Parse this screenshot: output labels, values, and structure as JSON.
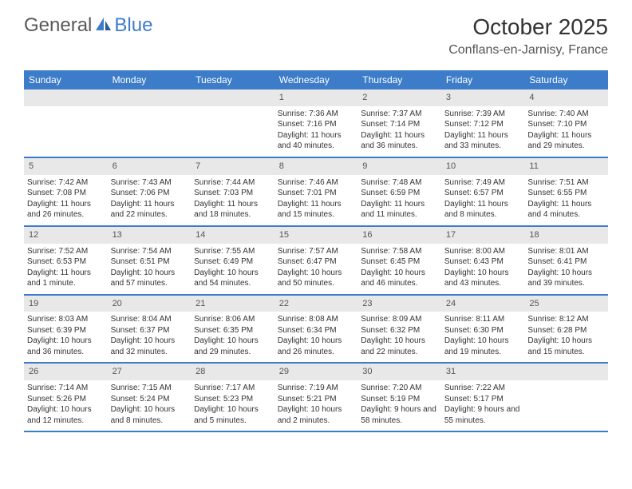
{
  "logo": {
    "part1": "General",
    "part2": "Blue"
  },
  "title": "October 2025",
  "location": "Conflans-en-Jarnisy, France",
  "colors": {
    "header_bg": "#3d7cc9",
    "daynum_bg": "#e8e8e8",
    "border": "#3d7cc9",
    "page_bg": "#ffffff",
    "text": "#333333"
  },
  "day_names": [
    "Sunday",
    "Monday",
    "Tuesday",
    "Wednesday",
    "Thursday",
    "Friday",
    "Saturday"
  ],
  "weeks": [
    [
      null,
      null,
      null,
      {
        "n": "1",
        "sr": "7:36 AM",
        "ss": "7:16 PM",
        "dl": "11 hours and 40 minutes."
      },
      {
        "n": "2",
        "sr": "7:37 AM",
        "ss": "7:14 PM",
        "dl": "11 hours and 36 minutes."
      },
      {
        "n": "3",
        "sr": "7:39 AM",
        "ss": "7:12 PM",
        "dl": "11 hours and 33 minutes."
      },
      {
        "n": "4",
        "sr": "7:40 AM",
        "ss": "7:10 PM",
        "dl": "11 hours and 29 minutes."
      }
    ],
    [
      {
        "n": "5",
        "sr": "7:42 AM",
        "ss": "7:08 PM",
        "dl": "11 hours and 26 minutes."
      },
      {
        "n": "6",
        "sr": "7:43 AM",
        "ss": "7:06 PM",
        "dl": "11 hours and 22 minutes."
      },
      {
        "n": "7",
        "sr": "7:44 AM",
        "ss": "7:03 PM",
        "dl": "11 hours and 18 minutes."
      },
      {
        "n": "8",
        "sr": "7:46 AM",
        "ss": "7:01 PM",
        "dl": "11 hours and 15 minutes."
      },
      {
        "n": "9",
        "sr": "7:48 AM",
        "ss": "6:59 PM",
        "dl": "11 hours and 11 minutes."
      },
      {
        "n": "10",
        "sr": "7:49 AM",
        "ss": "6:57 PM",
        "dl": "11 hours and 8 minutes."
      },
      {
        "n": "11",
        "sr": "7:51 AM",
        "ss": "6:55 PM",
        "dl": "11 hours and 4 minutes."
      }
    ],
    [
      {
        "n": "12",
        "sr": "7:52 AM",
        "ss": "6:53 PM",
        "dl": "11 hours and 1 minute."
      },
      {
        "n": "13",
        "sr": "7:54 AM",
        "ss": "6:51 PM",
        "dl": "10 hours and 57 minutes."
      },
      {
        "n": "14",
        "sr": "7:55 AM",
        "ss": "6:49 PM",
        "dl": "10 hours and 54 minutes."
      },
      {
        "n": "15",
        "sr": "7:57 AM",
        "ss": "6:47 PM",
        "dl": "10 hours and 50 minutes."
      },
      {
        "n": "16",
        "sr": "7:58 AM",
        "ss": "6:45 PM",
        "dl": "10 hours and 46 minutes."
      },
      {
        "n": "17",
        "sr": "8:00 AM",
        "ss": "6:43 PM",
        "dl": "10 hours and 43 minutes."
      },
      {
        "n": "18",
        "sr": "8:01 AM",
        "ss": "6:41 PM",
        "dl": "10 hours and 39 minutes."
      }
    ],
    [
      {
        "n": "19",
        "sr": "8:03 AM",
        "ss": "6:39 PM",
        "dl": "10 hours and 36 minutes."
      },
      {
        "n": "20",
        "sr": "8:04 AM",
        "ss": "6:37 PM",
        "dl": "10 hours and 32 minutes."
      },
      {
        "n": "21",
        "sr": "8:06 AM",
        "ss": "6:35 PM",
        "dl": "10 hours and 29 minutes."
      },
      {
        "n": "22",
        "sr": "8:08 AM",
        "ss": "6:34 PM",
        "dl": "10 hours and 26 minutes."
      },
      {
        "n": "23",
        "sr": "8:09 AM",
        "ss": "6:32 PM",
        "dl": "10 hours and 22 minutes."
      },
      {
        "n": "24",
        "sr": "8:11 AM",
        "ss": "6:30 PM",
        "dl": "10 hours and 19 minutes."
      },
      {
        "n": "25",
        "sr": "8:12 AM",
        "ss": "6:28 PM",
        "dl": "10 hours and 15 minutes."
      }
    ],
    [
      {
        "n": "26",
        "sr": "7:14 AM",
        "ss": "5:26 PM",
        "dl": "10 hours and 12 minutes."
      },
      {
        "n": "27",
        "sr": "7:15 AM",
        "ss": "5:24 PM",
        "dl": "10 hours and 8 minutes."
      },
      {
        "n": "28",
        "sr": "7:17 AM",
        "ss": "5:23 PM",
        "dl": "10 hours and 5 minutes."
      },
      {
        "n": "29",
        "sr": "7:19 AM",
        "ss": "5:21 PM",
        "dl": "10 hours and 2 minutes."
      },
      {
        "n": "30",
        "sr": "7:20 AM",
        "ss": "5:19 PM",
        "dl": "9 hours and 58 minutes."
      },
      {
        "n": "31",
        "sr": "7:22 AM",
        "ss": "5:17 PM",
        "dl": "9 hours and 55 minutes."
      },
      null
    ]
  ],
  "labels": {
    "sunrise": "Sunrise:",
    "sunset": "Sunset:",
    "daylight": "Daylight:"
  }
}
